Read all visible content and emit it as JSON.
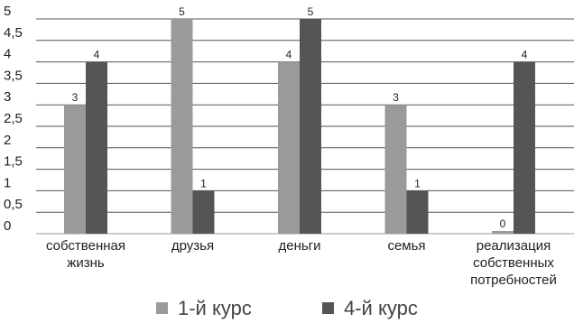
{
  "chart_data": {
    "type": "bar",
    "title": "",
    "xlabel": "",
    "ylabel": "",
    "ylim": [
      0,
      5
    ],
    "yticks": [
      0,
      0.5,
      1,
      1.5,
      2,
      2.5,
      3,
      3.5,
      4,
      4.5,
      5
    ],
    "ytick_labels": [
      "0",
      "0,5",
      "1",
      "1,5",
      "2",
      "2,5",
      "3",
      "3,5",
      "4",
      "4,5",
      "5"
    ],
    "grid": true,
    "legend_position": "bottom",
    "categories": [
      [
        "собственная",
        "жизнь"
      ],
      [
        "друзья"
      ],
      [
        "деньги"
      ],
      [
        "семья"
      ],
      [
        "реализация",
        "собственных",
        "потребностей"
      ]
    ],
    "series": [
      {
        "name": "1-й курс",
        "color": "#9a9a9a",
        "values": [
          3,
          5,
          4,
          3,
          0
        ]
      },
      {
        "name": "4-й курс",
        "color": "#555555",
        "values": [
          4,
          1,
          5,
          1,
          4
        ]
      }
    ]
  }
}
